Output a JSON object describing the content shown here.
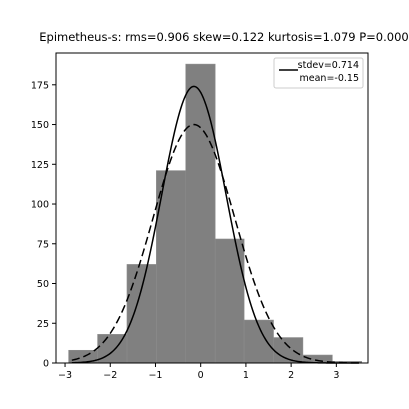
{
  "chart_data": {
    "type": "bar",
    "title": "Epimetheus-s:   rms=0.906  skew=0.122  kurtosis=1.079   P=0.000",
    "xlabel": "",
    "ylabel": "",
    "xlim": [
      -3.2,
      3.7
    ],
    "ylim": [
      0,
      195
    ],
    "x_ticks": [
      -3,
      -2,
      -1,
      0,
      1,
      2,
      3
    ],
    "x_tick_labels": [
      "−3",
      "−2",
      "−1",
      "0",
      "1",
      "2",
      "3"
    ],
    "y_ticks": [
      0,
      25,
      50,
      75,
      100,
      125,
      150,
      175
    ],
    "y_tick_labels": [
      "0",
      "25",
      "50",
      "75",
      "100",
      "125",
      "150",
      "175"
    ],
    "grid": false,
    "bar_color": "#808080",
    "bins": [
      {
        "x0": -2.92,
        "x1": -2.28,
        "count": 8
      },
      {
        "x0": -2.28,
        "x1": -1.63,
        "count": 18
      },
      {
        "x0": -1.63,
        "x1": -0.98,
        "count": 62
      },
      {
        "x0": -0.98,
        "x1": -0.33,
        "count": 121
      },
      {
        "x0": -0.33,
        "x1": 0.32,
        "count": 188
      },
      {
        "x0": 0.32,
        "x1": 0.96,
        "count": 78
      },
      {
        "x0": 0.96,
        "x1": 1.61,
        "count": 27
      },
      {
        "x0": 1.61,
        "x1": 2.26,
        "count": 16
      },
      {
        "x0": 2.26,
        "x1": 2.91,
        "count": 5
      },
      {
        "x0": 2.91,
        "x1": 3.56,
        "count": 1
      }
    ],
    "curves": [
      {
        "name": "stdev=0.714",
        "style": "solid",
        "mean": -0.15,
        "sigma": 0.714,
        "peak": 174
      },
      {
        "name": "mean=-0.15",
        "style": "dashed",
        "mean": -0.15,
        "sigma": 0.906,
        "peak": 150
      }
    ],
    "legend": {
      "placement": "top-right",
      "line1": "stdev=0.714",
      "line2": "mean=-0.15"
    }
  }
}
